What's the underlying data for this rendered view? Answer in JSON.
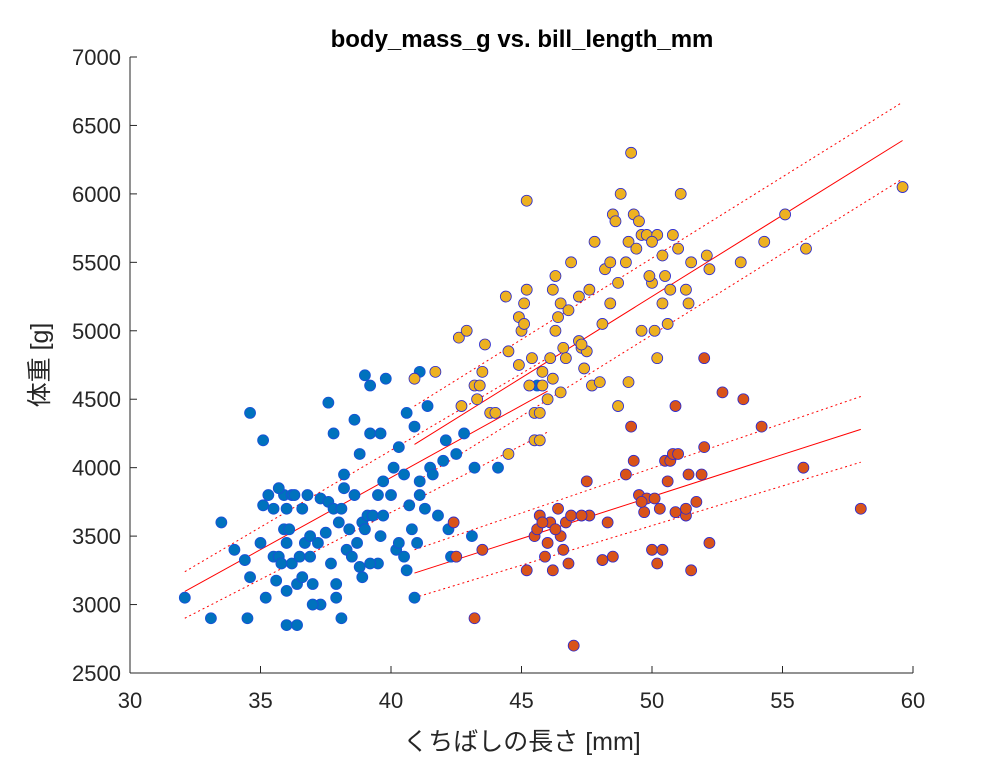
{
  "chart_data": {
    "type": "scatter",
    "title": "body_mass_g vs. bill_length_mm",
    "xlabel": "くちばしの長さ [mm]",
    "ylabel": "体重 [g]",
    "xlim": [
      30,
      60
    ],
    "ylim": [
      2500,
      7000
    ],
    "x_ticks": [
      30,
      35,
      40,
      45,
      50,
      55,
      60
    ],
    "y_ticks": [
      2500,
      3000,
      3500,
      4000,
      4500,
      5000,
      5500,
      6000,
      6500,
      7000
    ],
    "x_tick_labels": [
      "30",
      "35",
      "40",
      "45",
      "50",
      "55",
      "60"
    ],
    "y_tick_labels": [
      "2500",
      "3000",
      "3500",
      "4000",
      "4500",
      "5000",
      "5500",
      "6000",
      "6500",
      "7000"
    ],
    "grid": false,
    "box": "open-top-right",
    "colors": {
      "blue_fill": "#0072BD",
      "blue_edge": "#1a4fd8",
      "yellow_fill": "#EDB120",
      "red_fill": "#D95319",
      "other_edge": "#2a2ad0",
      "fit_line": "#ff0000",
      "axis": "#262626"
    },
    "series": [
      {
        "marker_color": "#0072BD",
        "points": [
          [
            32.1,
            3050
          ],
          [
            33.1,
            2900
          ],
          [
            33.5,
            3600
          ],
          [
            34.0,
            3400
          ],
          [
            34.4,
            3325
          ],
          [
            34.5,
            2900
          ],
          [
            34.6,
            4400
          ],
          [
            34.6,
            3200
          ],
          [
            35.0,
            3450
          ],
          [
            35.1,
            4200
          ],
          [
            35.1,
            3725
          ],
          [
            35.2,
            3050
          ],
          [
            35.3,
            3800
          ],
          [
            35.5,
            3350
          ],
          [
            35.5,
            3700
          ],
          [
            35.6,
            3175
          ],
          [
            35.7,
            3350
          ],
          [
            35.9,
            3550
          ],
          [
            35.9,
            3800
          ],
          [
            36.0,
            3700
          ],
          [
            36.0,
            3450
          ],
          [
            36.0,
            3100
          ],
          [
            36.0,
            2850
          ],
          [
            36.2,
            3300
          ],
          [
            36.2,
            3800
          ],
          [
            36.3,
            3800
          ],
          [
            36.4,
            3150
          ],
          [
            36.5,
            3350
          ],
          [
            36.6,
            3700
          ],
          [
            36.7,
            3450
          ],
          [
            36.8,
            3800
          ],
          [
            36.9,
            3500
          ],
          [
            37.0,
            3150
          ],
          [
            37.3,
            3000
          ],
          [
            37.3,
            3775
          ],
          [
            37.5,
            3525
          ],
          [
            37.6,
            3750
          ],
          [
            37.7,
            3300
          ],
          [
            37.8,
            3700
          ],
          [
            37.9,
            3150
          ],
          [
            38.0,
            3600
          ],
          [
            38.1,
            3700
          ],
          [
            38.1,
            2900
          ],
          [
            38.2,
            3950
          ],
          [
            38.3,
            3400
          ],
          [
            38.5,
            3350
          ],
          [
            38.6,
            3800
          ],
          [
            38.7,
            3450
          ],
          [
            38.8,
            3275
          ],
          [
            38.9,
            3600
          ],
          [
            39.0,
            3550
          ],
          [
            39.1,
            3650
          ],
          [
            39.2,
            4250
          ],
          [
            39.5,
            3300
          ],
          [
            39.6,
            3500
          ],
          [
            39.7,
            3900
          ],
          [
            39.8,
            4650
          ],
          [
            40.1,
            4000
          ],
          [
            40.2,
            3400
          ],
          [
            40.3,
            3450
          ],
          [
            40.5,
            3950
          ],
          [
            40.6,
            4400
          ],
          [
            40.7,
            3725
          ],
          [
            40.8,
            3550
          ],
          [
            40.9,
            4300
          ],
          [
            41.1,
            3900
          ],
          [
            41.1,
            4700
          ],
          [
            41.3,
            3700
          ],
          [
            41.5,
            4000
          ],
          [
            41.6,
            3950
          ],
          [
            42.0,
            4050
          ],
          [
            42.2,
            3550
          ],
          [
            42.5,
            4100
          ],
          [
            42.8,
            4250
          ],
          [
            43.2,
            4000
          ],
          [
            44.1,
            4000
          ],
          [
            45.6,
            4600
          ],
          [
            37.6,
            4475
          ],
          [
            37.8,
            4250
          ],
          [
            39.0,
            4675
          ],
          [
            38.2,
            3850
          ],
          [
            36.6,
            3200
          ],
          [
            40.0,
            3800
          ],
          [
            38.8,
            4100
          ],
          [
            39.2,
            4600
          ],
          [
            41.4,
            4450
          ],
          [
            42.1,
            4200
          ],
          [
            39.6,
            4250
          ],
          [
            36.1,
            3550
          ],
          [
            37.2,
            3450
          ],
          [
            40.5,
            3350
          ],
          [
            41.8,
            3650
          ],
          [
            39.3,
            3650
          ],
          [
            35.8,
            3300
          ],
          [
            38.4,
            3550
          ],
          [
            37.0,
            3000
          ],
          [
            40.9,
            3050
          ],
          [
            42.3,
            3350
          ],
          [
            41.0,
            3450
          ],
          [
            36.4,
            2850
          ],
          [
            38.9,
            3200
          ],
          [
            39.7,
            3650
          ],
          [
            37.9,
            3050
          ],
          [
            40.3,
            4150
          ],
          [
            39.5,
            3800
          ],
          [
            41.1,
            3800
          ],
          [
            40.6,
            3250
          ],
          [
            36.9,
            3350
          ],
          [
            43.1,
            3500
          ],
          [
            35.7,
            3850
          ],
          [
            38.6,
            4350
          ],
          [
            39.2,
            3300
          ]
        ]
      },
      {
        "marker_color": "#EDB120",
        "points": [
          [
            40.9,
            4650
          ],
          [
            41.7,
            4700
          ],
          [
            42.6,
            4950
          ],
          [
            42.9,
            5000
          ],
          [
            43.2,
            4600
          ],
          [
            43.3,
            4500
          ],
          [
            43.4,
            4600
          ],
          [
            43.5,
            4700
          ],
          [
            43.6,
            4900
          ],
          [
            43.8,
            4400
          ],
          [
            44.0,
            4400
          ],
          [
            44.4,
            5250
          ],
          [
            44.5,
            4850
          ],
          [
            44.9,
            5100
          ],
          [
            45.0,
            5000
          ],
          [
            45.1,
            5050
          ],
          [
            45.2,
            5300
          ],
          [
            45.2,
            5950
          ],
          [
            45.3,
            4600
          ],
          [
            45.4,
            4800
          ],
          [
            45.5,
            4200
          ],
          [
            45.5,
            4400
          ],
          [
            45.7,
            4200
          ],
          [
            45.8,
            4700
          ],
          [
            46.1,
            4800
          ],
          [
            46.2,
            5300
          ],
          [
            46.3,
            5400
          ],
          [
            46.4,
            5100
          ],
          [
            46.5,
            5200
          ],
          [
            46.5,
            4550
          ],
          [
            46.6,
            4875
          ],
          [
            46.8,
            5150
          ],
          [
            46.9,
            5500
          ],
          [
            47.2,
            4925
          ],
          [
            47.3,
            4875
          ],
          [
            47.5,
            4850
          ],
          [
            47.6,
            5300
          ],
          [
            47.7,
            4600
          ],
          [
            47.8,
            5650
          ],
          [
            48.1,
            5050
          ],
          [
            48.2,
            5450
          ],
          [
            48.4,
            5500
          ],
          [
            48.5,
            5850
          ],
          [
            48.6,
            5800
          ],
          [
            48.7,
            5350
          ],
          [
            48.8,
            6000
          ],
          [
            49.0,
            5500
          ],
          [
            49.1,
            5650
          ],
          [
            49.2,
            6300
          ],
          [
            49.3,
            5850
          ],
          [
            49.4,
            5600
          ],
          [
            49.5,
            5800
          ],
          [
            49.6,
            5700
          ],
          [
            49.8,
            5700
          ],
          [
            50.0,
            5350
          ],
          [
            50.1,
            5000
          ],
          [
            50.2,
            5700
          ],
          [
            50.4,
            5550
          ],
          [
            50.5,
            5400
          ],
          [
            50.6,
            5050
          ],
          [
            50.8,
            5700
          ],
          [
            51.1,
            6000
          ],
          [
            51.3,
            5300
          ],
          [
            51.5,
            5500
          ],
          [
            52.1,
            5550
          ],
          [
            52.2,
            5450
          ],
          [
            53.4,
            5500
          ],
          [
            54.3,
            5650
          ],
          [
            55.1,
            5850
          ],
          [
            55.9,
            5600
          ],
          [
            59.6,
            6050
          ],
          [
            47.4,
            4725
          ],
          [
            44.9,
            4750
          ],
          [
            46.3,
            5000
          ],
          [
            45.7,
            4400
          ],
          [
            46.7,
            4800
          ],
          [
            48.0,
            4625
          ],
          [
            48.7,
            4450
          ],
          [
            49.1,
            4625
          ],
          [
            50.4,
            5200
          ],
          [
            50.7,
            5300
          ],
          [
            51.4,
            5200
          ],
          [
            45.8,
            4600
          ],
          [
            46.0,
            4500
          ],
          [
            47.3,
            4900
          ],
          [
            49.6,
            5000
          ],
          [
            50.2,
            4800
          ],
          [
            44.5,
            4100
          ],
          [
            42.7,
            4450
          ],
          [
            46.2,
            4650
          ],
          [
            47.2,
            5250
          ],
          [
            48.4,
            5200
          ],
          [
            50.0,
            5650
          ],
          [
            51.0,
            5600
          ],
          [
            49.9,
            5400
          ],
          [
            45.1,
            5200
          ]
        ]
      },
      {
        "marker_color": "#D95319",
        "points": [
          [
            42.4,
            3600
          ],
          [
            42.5,
            3350
          ],
          [
            43.2,
            2900
          ],
          [
            43.5,
            3400
          ],
          [
            45.2,
            3250
          ],
          [
            45.5,
            3500
          ],
          [
            45.6,
            3550
          ],
          [
            45.7,
            3650
          ],
          [
            46.0,
            3450
          ],
          [
            46.1,
            3600
          ],
          [
            46.2,
            3250
          ],
          [
            46.4,
            3700
          ],
          [
            46.5,
            3500
          ],
          [
            46.6,
            3400
          ],
          [
            46.7,
            3600
          ],
          [
            46.8,
            3300
          ],
          [
            46.9,
            3650
          ],
          [
            47.0,
            2700
          ],
          [
            47.5,
            3900
          ],
          [
            47.6,
            3650
          ],
          [
            48.1,
            3325
          ],
          [
            48.5,
            3350
          ],
          [
            49.0,
            3950
          ],
          [
            49.2,
            4300
          ],
          [
            49.5,
            3800
          ],
          [
            49.7,
            3675
          ],
          [
            49.8,
            3775
          ],
          [
            50.0,
            3400
          ],
          [
            50.1,
            3775
          ],
          [
            50.2,
            3300
          ],
          [
            50.3,
            3700
          ],
          [
            50.5,
            4050
          ],
          [
            50.6,
            3900
          ],
          [
            50.7,
            4050
          ],
          [
            50.8,
            4100
          ],
          [
            50.9,
            3675
          ],
          [
            51.0,
            4100
          ],
          [
            51.3,
            3650
          ],
          [
            51.4,
            3950
          ],
          [
            51.5,
            3250
          ],
          [
            51.7,
            3750
          ],
          [
            51.9,
            3950
          ],
          [
            52.0,
            4150
          ],
          [
            52.0,
            4800
          ],
          [
            52.2,
            3450
          ],
          [
            52.7,
            4550
          ],
          [
            53.5,
            4500
          ],
          [
            54.2,
            4300
          ],
          [
            55.8,
            4000
          ],
          [
            58.0,
            3700
          ],
          [
            48.3,
            3600
          ],
          [
            49.3,
            4050
          ],
          [
            50.9,
            4450
          ],
          [
            45.9,
            3350
          ],
          [
            47.3,
            3650
          ],
          [
            50.4,
            3400
          ],
          [
            49.6,
            3750
          ],
          [
            51.3,
            3700
          ],
          [
            46.3,
            3550
          ],
          [
            45.8,
            3600
          ]
        ]
      }
    ],
    "fit_lines": [
      {
        "style": "solid",
        "points": [
          [
            32.1,
            3096
          ],
          [
            46.0,
            4560
          ]
        ]
      },
      {
        "style": "dotted",
        "points": [
          [
            32.1,
            3240
          ],
          [
            46.0,
            4800
          ]
        ]
      },
      {
        "style": "dotted",
        "points": [
          [
            32.1,
            2900
          ],
          [
            46.0,
            4260
          ]
        ]
      },
      {
        "style": "solid",
        "points": [
          [
            40.9,
            4170
          ],
          [
            59.6,
            6390
          ]
        ]
      },
      {
        "style": "dotted",
        "points": [
          [
            40.9,
            4450
          ],
          [
            59.6,
            6670
          ]
        ]
      },
      {
        "style": "dotted",
        "points": [
          [
            40.9,
            3890
          ],
          [
            59.6,
            6110
          ]
        ]
      },
      {
        "style": "solid",
        "points": [
          [
            40.9,
            3230
          ],
          [
            58.0,
            4280
          ]
        ]
      },
      {
        "style": "dotted",
        "points": [
          [
            40.9,
            3400
          ],
          [
            58.0,
            4520
          ]
        ]
      },
      {
        "style": "dotted",
        "points": [
          [
            40.9,
            3050
          ],
          [
            58.0,
            4040
          ]
        ]
      }
    ]
  }
}
